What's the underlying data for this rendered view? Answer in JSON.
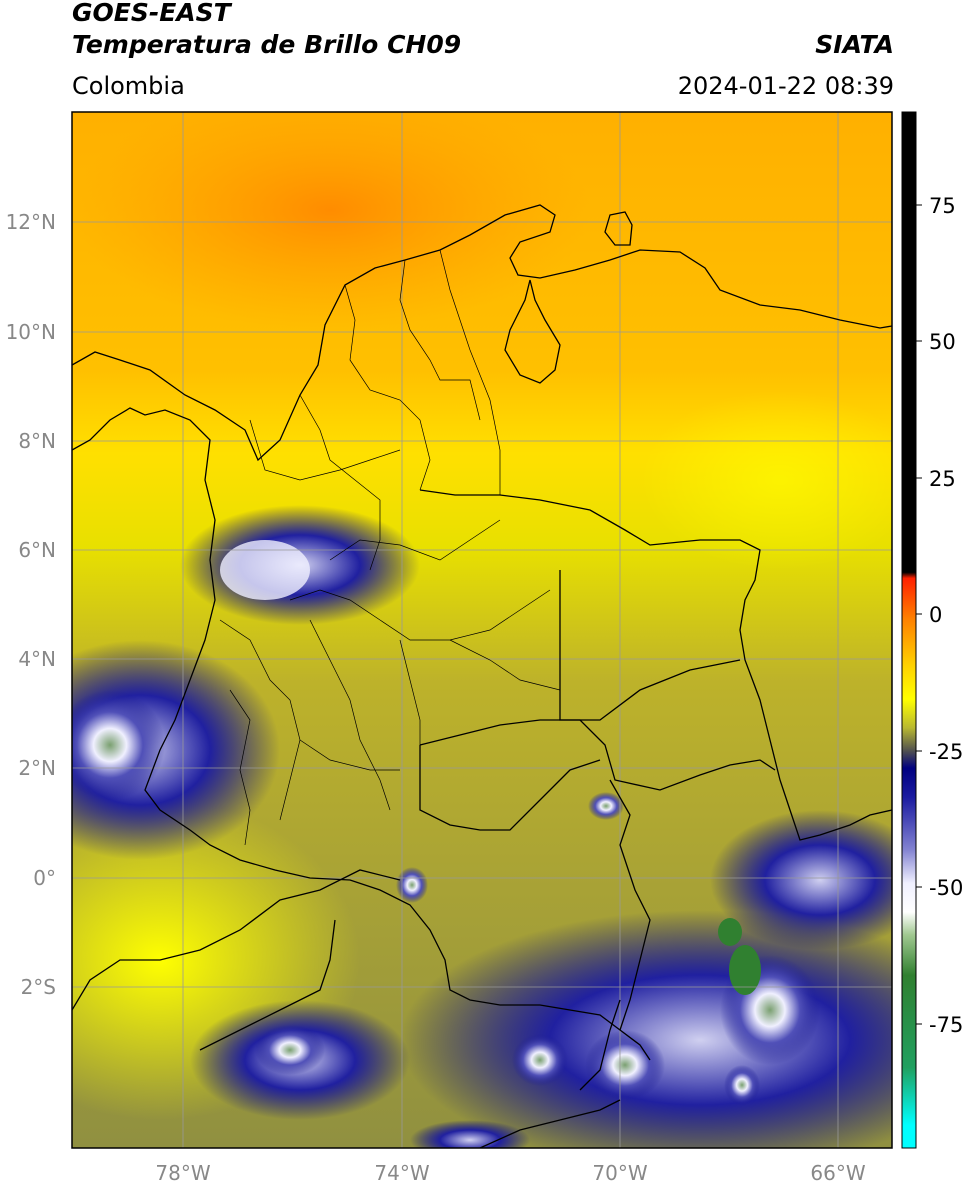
{
  "header": {
    "satellite": "GOES-EAST",
    "product": "Temperatura de Brillo CH09",
    "organization": "SIATA",
    "region": "Colombia",
    "datetime": "2024-01-22 08:39"
  },
  "map": {
    "lat_labels": [
      "12°N",
      "10°N",
      "8°N",
      "6°N",
      "4°N",
      "2°N",
      "0°",
      "2°S"
    ],
    "lon_labels": [
      "78°W",
      "74°W",
      "70°W",
      "66°W"
    ]
  },
  "colorbar": {
    "tick_labels": [
      "75",
      "50",
      "25",
      "0",
      "-25",
      "-50",
      "-75"
    ],
    "stops": [
      {
        "value": 88,
        "color": "#000000"
      },
      {
        "value": 8,
        "color": "#000000"
      },
      {
        "value": 7,
        "color": "#ff2000"
      },
      {
        "value": 0,
        "color": "#ff8000"
      },
      {
        "value": -8,
        "color": "#ffd000"
      },
      {
        "value": -14,
        "color": "#ffff00"
      },
      {
        "value": -19,
        "color": "#b8b830"
      },
      {
        "value": -23,
        "color": "#505050"
      },
      {
        "value": -26,
        "color": "#000080"
      },
      {
        "value": -31,
        "color": "#1a1aa0"
      },
      {
        "value": -40,
        "color": "#8080d0"
      },
      {
        "value": -46,
        "color": "#f0f0ff"
      },
      {
        "value": -51,
        "color": "#ffffff"
      },
      {
        "value": -55,
        "color": "#a0c890"
      },
      {
        "value": -62,
        "color": "#308030"
      },
      {
        "value": -78,
        "color": "#20a060"
      },
      {
        "value": -88,
        "color": "#00ffff"
      },
      {
        "value": -92,
        "color": "#00ffff"
      }
    ]
  }
}
